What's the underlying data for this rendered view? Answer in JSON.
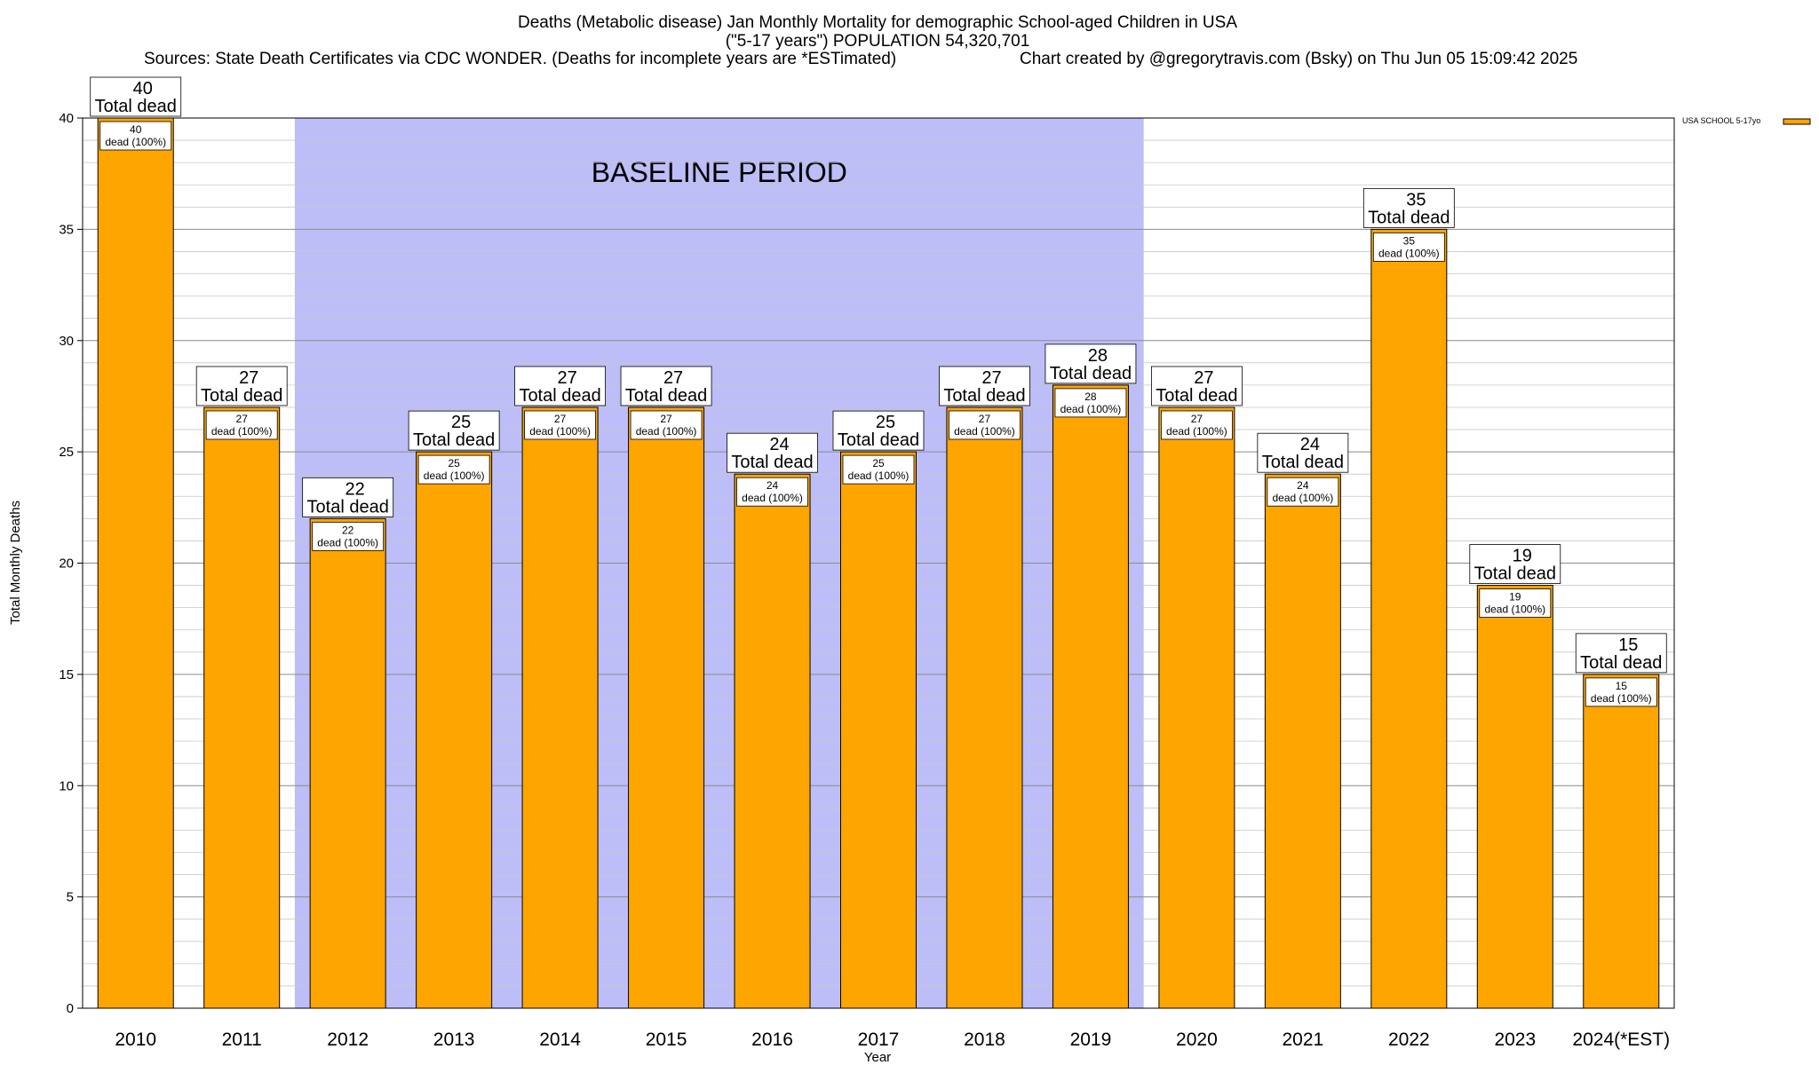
{
  "chart_data": {
    "type": "bar",
    "title_lines": [
      "Deaths (Metabolic disease) Jan Monthly Mortality for demographic School-aged Children in USA",
      "(\"5-17 years\") POPULATION 54,320,701"
    ],
    "sources": "Sources: State Death Certificates via CDC WONDER. (Deaths for incomplete years are *ESTimated)",
    "credit": "Chart created by @gregorytravis.com (Bsky) on Thu Jun 05 15:09:42 2025",
    "xlabel": "Year",
    "ylabel": "Total Monthly Deaths",
    "ylim": [
      0,
      40
    ],
    "y_ticks": [
      0,
      5,
      10,
      15,
      20,
      25,
      30,
      35,
      40
    ],
    "categories": [
      "2010",
      "2011",
      "2012",
      "2013",
      "2014",
      "2015",
      "2016",
      "2017",
      "2018",
      "2019",
      "2020",
      "2021",
      "2022",
      "2023",
      "2024(*EST)"
    ],
    "series": [
      {
        "name": "USA SCHOOL 5-17yo",
        "color": "#FFA500",
        "values": [
          40,
          27,
          22,
          25,
          27,
          27,
          24,
          25,
          27,
          28,
          27,
          24,
          35,
          19,
          15
        ]
      }
    ],
    "total_label_suffix": "Total dead",
    "inner_label_suffix": "dead (100%)",
    "baseline_label": "BASELINE PERIOD",
    "baseline_range": [
      "2012",
      "2019"
    ],
    "baseline_color": "#BDBDF7",
    "grid": true,
    "legend_position": "top-right"
  }
}
